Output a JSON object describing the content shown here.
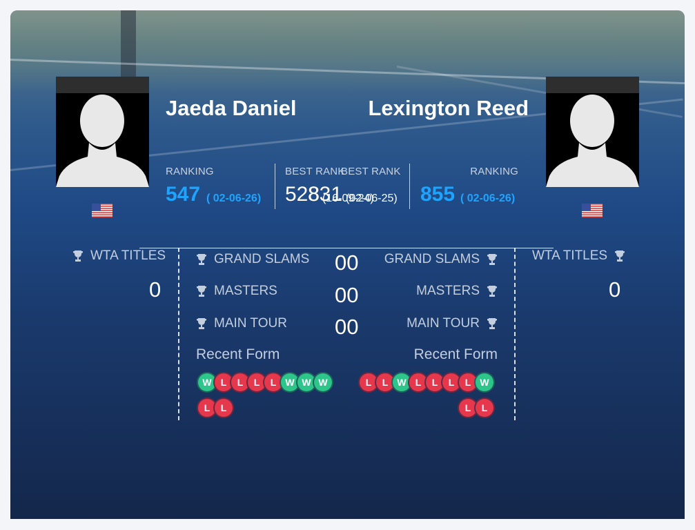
{
  "left": {
    "name": "Jaeda Daniel",
    "ranking_label": "RANKING",
    "ranking": "547",
    "ranking_date": "( 02-06-26)",
    "best_rank_label": "BEST RANK",
    "best_rank": "528",
    "best_rank_date": "(16-09-24)",
    "titles_label": "WTA TITLES",
    "titles": "0",
    "grand_slams_label": "GRAND SLAMS",
    "masters_label": "MASTERS",
    "main_tour_label": "MAIN TOUR",
    "recent_form_label": "Recent Form",
    "form_row1": [
      "W",
      "L",
      "L",
      "L",
      "L",
      "W",
      "W",
      "W"
    ],
    "form_row2": [
      "L",
      "L"
    ]
  },
  "right": {
    "name": "Lexington Reed",
    "ranking_label": "RANKING",
    "ranking": "855",
    "ranking_date": "( 02-06-26)",
    "best_rank_label": "BEST RANK",
    "best_rank": "831",
    "best_rank_date": "(02-06-25)",
    "titles_label": "WTA TITLES",
    "titles": "0",
    "grand_slams_label": "GRAND SLAMS",
    "masters_label": "MASTERS",
    "main_tour_label": "MAIN TOUR",
    "recent_form_label": "Recent Form",
    "form_row1": [
      "L",
      "L",
      "W",
      "L",
      "L",
      "L",
      "L",
      "W"
    ],
    "form_row2": [
      "L",
      "L"
    ]
  },
  "h2h": {
    "grand_slams": "00",
    "masters": "00",
    "main_tour": "00"
  },
  "colors": {
    "accent": "#1ea4ff",
    "win": "#2ec58a",
    "loss": "#e5384d"
  },
  "icons": {
    "trophy": "trophy-icon",
    "flag": "us-flag-icon",
    "avatar": "player-silhouette-icon"
  }
}
